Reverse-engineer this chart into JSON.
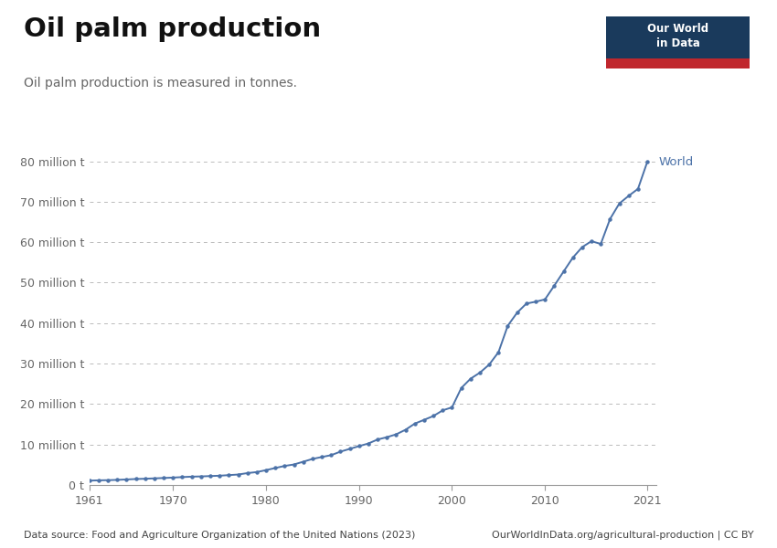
{
  "title": "Oil palm production",
  "subtitle": "Oil palm production is measured in tonnes.",
  "line_color": "#4c72a8",
  "line_label": "World",
  "background_color": "#ffffff",
  "grid_color": "#bbbbbb",
  "ytick_labels": [
    "0 t",
    "10 million t",
    "20 million t",
    "30 million t",
    "40 million t",
    "50 million t",
    "60 million t",
    "70 million t",
    "80 million t"
  ],
  "ytick_values": [
    0,
    10000000,
    20000000,
    30000000,
    40000000,
    50000000,
    60000000,
    70000000,
    80000000
  ],
  "xlim": [
    1961,
    2022
  ],
  "ylim": [
    0,
    86000000
  ],
  "footer_left": "Data source: Food and Agriculture Organization of the United Nations (2023)",
  "footer_right": "OurWorldInData.org/agricultural-production | CC BY",
  "owid_box_bg": "#1a3a5c",
  "owid_red": "#c0272d",
  "years": [
    1961,
    1962,
    1963,
    1964,
    1965,
    1966,
    1967,
    1968,
    1969,
    1970,
    1971,
    1972,
    1973,
    1974,
    1975,
    1976,
    1977,
    1978,
    1979,
    1980,
    1981,
    1982,
    1983,
    1984,
    1985,
    1986,
    1987,
    1988,
    1989,
    1990,
    1991,
    1992,
    1993,
    1994,
    1995,
    1996,
    1997,
    1998,
    1999,
    2000,
    2001,
    2002,
    2003,
    2004,
    2005,
    2006,
    2007,
    2008,
    2009,
    2010,
    2011,
    2012,
    2013,
    2014,
    2015,
    2016,
    2017,
    2018,
    2019,
    2020,
    2021
  ],
  "values": [
    1073000,
    1147000,
    1192000,
    1261000,
    1370000,
    1476000,
    1543000,
    1637000,
    1729000,
    1831000,
    1950000,
    2060000,
    2115000,
    2206000,
    2294000,
    2438000,
    2584000,
    2938000,
    3190000,
    3672000,
    4199000,
    4706000,
    5066000,
    5750000,
    6440000,
    6915000,
    7368000,
    8240000,
    8920000,
    9598000,
    10250000,
    11240000,
    11810000,
    12524000,
    13645000,
    15165000,
    16102000,
    17043000,
    18444000,
    19192000,
    23968000,
    26276000,
    27757000,
    29760000,
    32825000,
    39370000,
    42570000,
    44834000,
    45297000,
    45867000,
    49263000,
    52750000,
    56200000,
    58785000,
    60254000,
    59565000,
    65753000,
    69578000,
    71456000,
    73184000,
    79840000
  ]
}
